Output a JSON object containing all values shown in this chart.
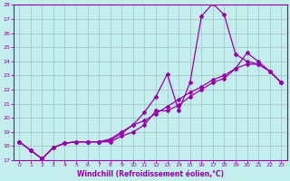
{
  "xlabel": "Windchill (Refroidissement éolien,°C)",
  "xlim": [
    -0.5,
    23.5
  ],
  "ylim": [
    17,
    28
  ],
  "xticks": [
    0,
    1,
    2,
    3,
    4,
    5,
    6,
    7,
    8,
    9,
    10,
    11,
    12,
    13,
    14,
    15,
    16,
    17,
    18,
    19,
    20,
    21,
    22,
    23
  ],
  "yticks": [
    17,
    18,
    19,
    20,
    21,
    22,
    23,
    24,
    25,
    26,
    27,
    28
  ],
  "bg_color": "#c4eded",
  "line_color": "#9900aa",
  "grid_color": "#aacccc",
  "line1_x": [
    0,
    1,
    2,
    3,
    4,
    5,
    6,
    7,
    8,
    9,
    10,
    11,
    12,
    13,
    14,
    15,
    16,
    17,
    18,
    19,
    20,
    21,
    22,
    23
  ],
  "line1_y": [
    18.3,
    17.7,
    17.1,
    17.9,
    18.2,
    18.3,
    18.3,
    18.3,
    18.3,
    18.7,
    19.0,
    19.5,
    20.5,
    20.5,
    20.9,
    21.5,
    22.0,
    22.5,
    22.8,
    23.5,
    23.8,
    23.8,
    23.3,
    22.5
  ],
  "line2_x": [
    0,
    1,
    2,
    3,
    4,
    5,
    6,
    7,
    8,
    9,
    10,
    11,
    12,
    13,
    14,
    15,
    16,
    17,
    18,
    19,
    20,
    21,
    22,
    23
  ],
  "line2_y": [
    18.3,
    17.7,
    17.1,
    17.9,
    18.2,
    18.3,
    18.3,
    18.3,
    18.4,
    18.9,
    19.5,
    20.4,
    21.5,
    23.1,
    20.5,
    22.5,
    27.2,
    28.1,
    27.3,
    24.5,
    24.0,
    23.8,
    23.3,
    22.5
  ],
  "line3_x": [
    0,
    1,
    2,
    3,
    4,
    5,
    6,
    7,
    8,
    9,
    10,
    11,
    12,
    13,
    14,
    15,
    16,
    17,
    18,
    19,
    20,
    21,
    22,
    23
  ],
  "line3_y": [
    18.3,
    17.7,
    17.1,
    17.9,
    18.2,
    18.3,
    18.3,
    18.3,
    18.5,
    19.0,
    19.5,
    19.8,
    20.3,
    20.8,
    21.3,
    21.8,
    22.2,
    22.7,
    23.0,
    23.5,
    24.6,
    24.0,
    23.3,
    22.5
  ]
}
